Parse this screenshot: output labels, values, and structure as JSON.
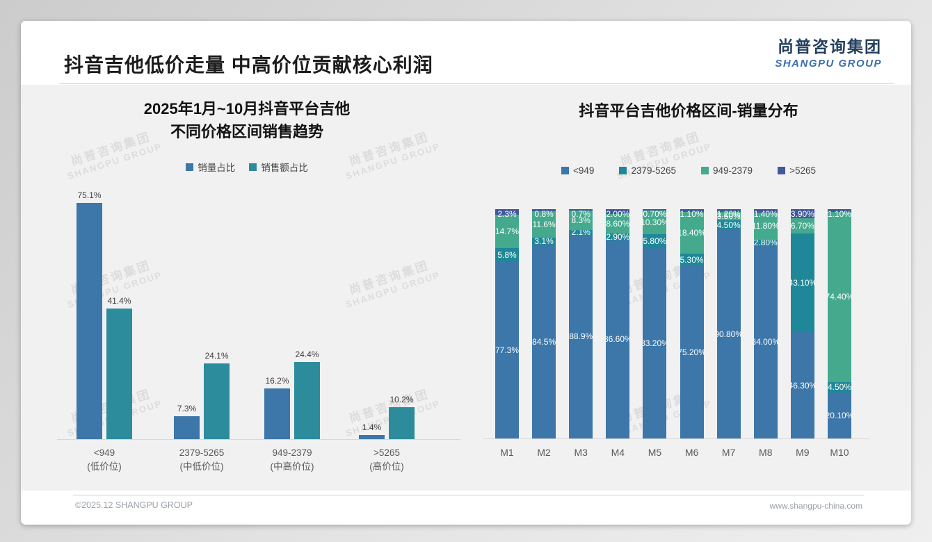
{
  "page": {
    "title": "抖音吉他低价走量 中高价位贡献核心利润",
    "logo": {
      "cn": "尚普咨询集团",
      "en": "SHANGPU GROUP"
    },
    "watermark": {
      "line1": "尚普咨询集团",
      "line2": "SHANGPU GROUP"
    },
    "footer": {
      "left": "©2025.12 SHANGPU GROUP",
      "right": "www.shangpu-china.com"
    }
  },
  "colors": {
    "blue": "#3D76A8",
    "teal_left": "#2C8C9C",
    "teal_right": "#1F8898",
    "green": "#45A98E",
    "navy": "#42589D",
    "band": "#f1f1f1",
    "axis": "#d8d8d8"
  },
  "chart_data": [
    {
      "type": "bar",
      "title": "2025年1月~10月抖音平台吉他\n不同价格区间销售趋势",
      "categories": [
        "<949\n(低价位)",
        "2379-5265\n(中低价位)",
        "949-2379\n(中高价位)",
        ">5265\n(高价位)"
      ],
      "series": [
        {
          "name": "销量占比",
          "color": "#3D76A8",
          "values": [
            75.1,
            7.3,
            16.2,
            1.4
          ],
          "labels": [
            "75.1%",
            "7.3%",
            "16.2%",
            "1.4%"
          ]
        },
        {
          "name": "销售额占比",
          "color": "#2C8C9C",
          "values": [
            41.4,
            24.1,
            24.4,
            10.2
          ],
          "labels": [
            "41.4%",
            "24.1%",
            "24.4%",
            "10.2%"
          ]
        }
      ],
      "xlabel": "",
      "ylabel": "",
      "ylim": [
        0,
        80
      ],
      "grid": false,
      "legend_position": "top",
      "value_suffix": "%"
    },
    {
      "type": "bar",
      "stacked": true,
      "title": "抖音平台吉他价格区间-销量分布",
      "categories": [
        "M1",
        "M2",
        "M3",
        "M4",
        "M5",
        "M6",
        "M7",
        "M8",
        "M9",
        "M10"
      ],
      "series": [
        {
          "name": "<949",
          "color": "#3D76A8",
          "values": [
            77.3,
            84.5,
            88.9,
            86.6,
            83.2,
            75.2,
            90.8,
            84.0,
            46.3,
            20.1
          ],
          "labels": [
            "77.3%",
            "84.5%",
            "88.9%",
            "86.60%",
            "83.20%",
            "75.20%",
            "90.80%",
            "84.00%",
            "46.30%",
            "20.10%"
          ]
        },
        {
          "name": "2379-5265",
          "color": "#1F8898",
          "values": [
            5.8,
            3.1,
            2.1,
            2.9,
            5.8,
            5.3,
            4.5,
            2.8,
            43.1,
            4.5
          ],
          "labels": [
            "5.8%",
            "3.1%",
            "2.1%",
            "2.90%",
            "5.80%",
            "5.30%",
            "4.50%",
            "2.80%",
            "43.10%",
            "4.50%"
          ]
        },
        {
          "name": "949-2379",
          "color": "#45A98E",
          "values": [
            14.7,
            11.6,
            8.3,
            8.6,
            10.3,
            18.4,
            3.5,
            11.8,
            6.7,
            74.4
          ],
          "labels": [
            "14.7%",
            "11.6%",
            "8.3%",
            "8.60%",
            "10.30%",
            "18.40%",
            "3.50%",
            "11.80%",
            "6.70%",
            "74.40%"
          ]
        },
        {
          "name": ">5265",
          "color": "#42589D",
          "values": [
            2.3,
            0.8,
            0.7,
            2.0,
            0.7,
            1.1,
            1.2,
            1.4,
            3.9,
            1.1
          ],
          "labels": [
            "2.3%",
            "0.8%",
            "0.7%",
            "2.00%",
            "0.70%",
            "1.10%",
            "1.20%",
            "1.40%",
            "3.90%",
            "1.10%"
          ]
        }
      ],
      "xlabel": "",
      "ylabel": "",
      "ylim": [
        0,
        100
      ],
      "grid": false,
      "legend_position": "top",
      "unit": "percent"
    }
  ]
}
